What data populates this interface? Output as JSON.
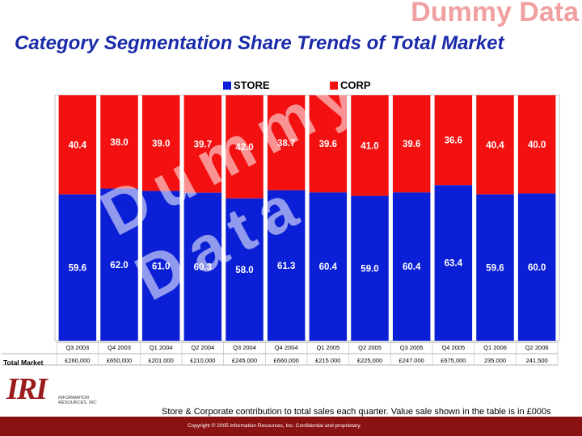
{
  "header": {
    "watermark": "Dummy Data",
    "title": "Category Segmentation Share Trends of Total Market"
  },
  "chart_data": {
    "type": "bar",
    "stacked": true,
    "categories": [
      "Q3 2003",
      "Q4 2003",
      "Q1 2004",
      "Q2 2004",
      "Q3 2004",
      "Q4 2004",
      "Q1 2005",
      "Q2 2005",
      "Q3 2005",
      "Q4 2005",
      "Q1 2006",
      "Q2 2006"
    ],
    "series": [
      {
        "name": "STORE",
        "values": [
          59.6,
          62.0,
          61.0,
          60.3,
          58.0,
          61.3,
          60.4,
          59.0,
          60.4,
          63.4,
          59.6,
          60.0
        ],
        "labels": [
          "59.6",
          "62.0",
          "61.0",
          "60.3",
          "58.0",
          "61.3",
          "60.4",
          "59.0",
          "60.4",
          "63.4",
          "59.6",
          "60.0"
        ],
        "color": "#0b1fd6"
      },
      {
        "name": "CORP",
        "values": [
          40.4,
          38.0,
          39.0,
          39.7,
          42.0,
          38.7,
          39.6,
          41.0,
          39.6,
          36.6,
          40.4,
          40.0
        ],
        "labels": [
          "40.4",
          "38.0",
          "39.0",
          "39.7",
          "42.0",
          "38.7",
          "39.6",
          "41.0",
          "39.6",
          "36.6",
          "40.4",
          "40.0"
        ],
        "color": "#f21010"
      }
    ],
    "ylim": [
      0,
      100
    ],
    "legend_position": "top",
    "table": {
      "row_label": "Total Market",
      "values": [
        "£260,000",
        "£650,000",
        "£201.000",
        "£210,000",
        "£245.000",
        "£660,000",
        "£215.000",
        "£225,000",
        "£247.000",
        "£675,000",
        "235.000",
        "241,500"
      ]
    }
  },
  "caption": "Store & Corporate contribution to total sales each quarter. Value sale shown in the table is in £000s",
  "footer": "Copyright © 2005 Information Resources, Inc. Confidential and proprietary.",
  "logo": {
    "letters": "IRI",
    "subtitle": "INFORMATION RESOURCES, INC."
  },
  "colors": {
    "accent": "#1a2aa8",
    "footer": "#8b1212"
  }
}
